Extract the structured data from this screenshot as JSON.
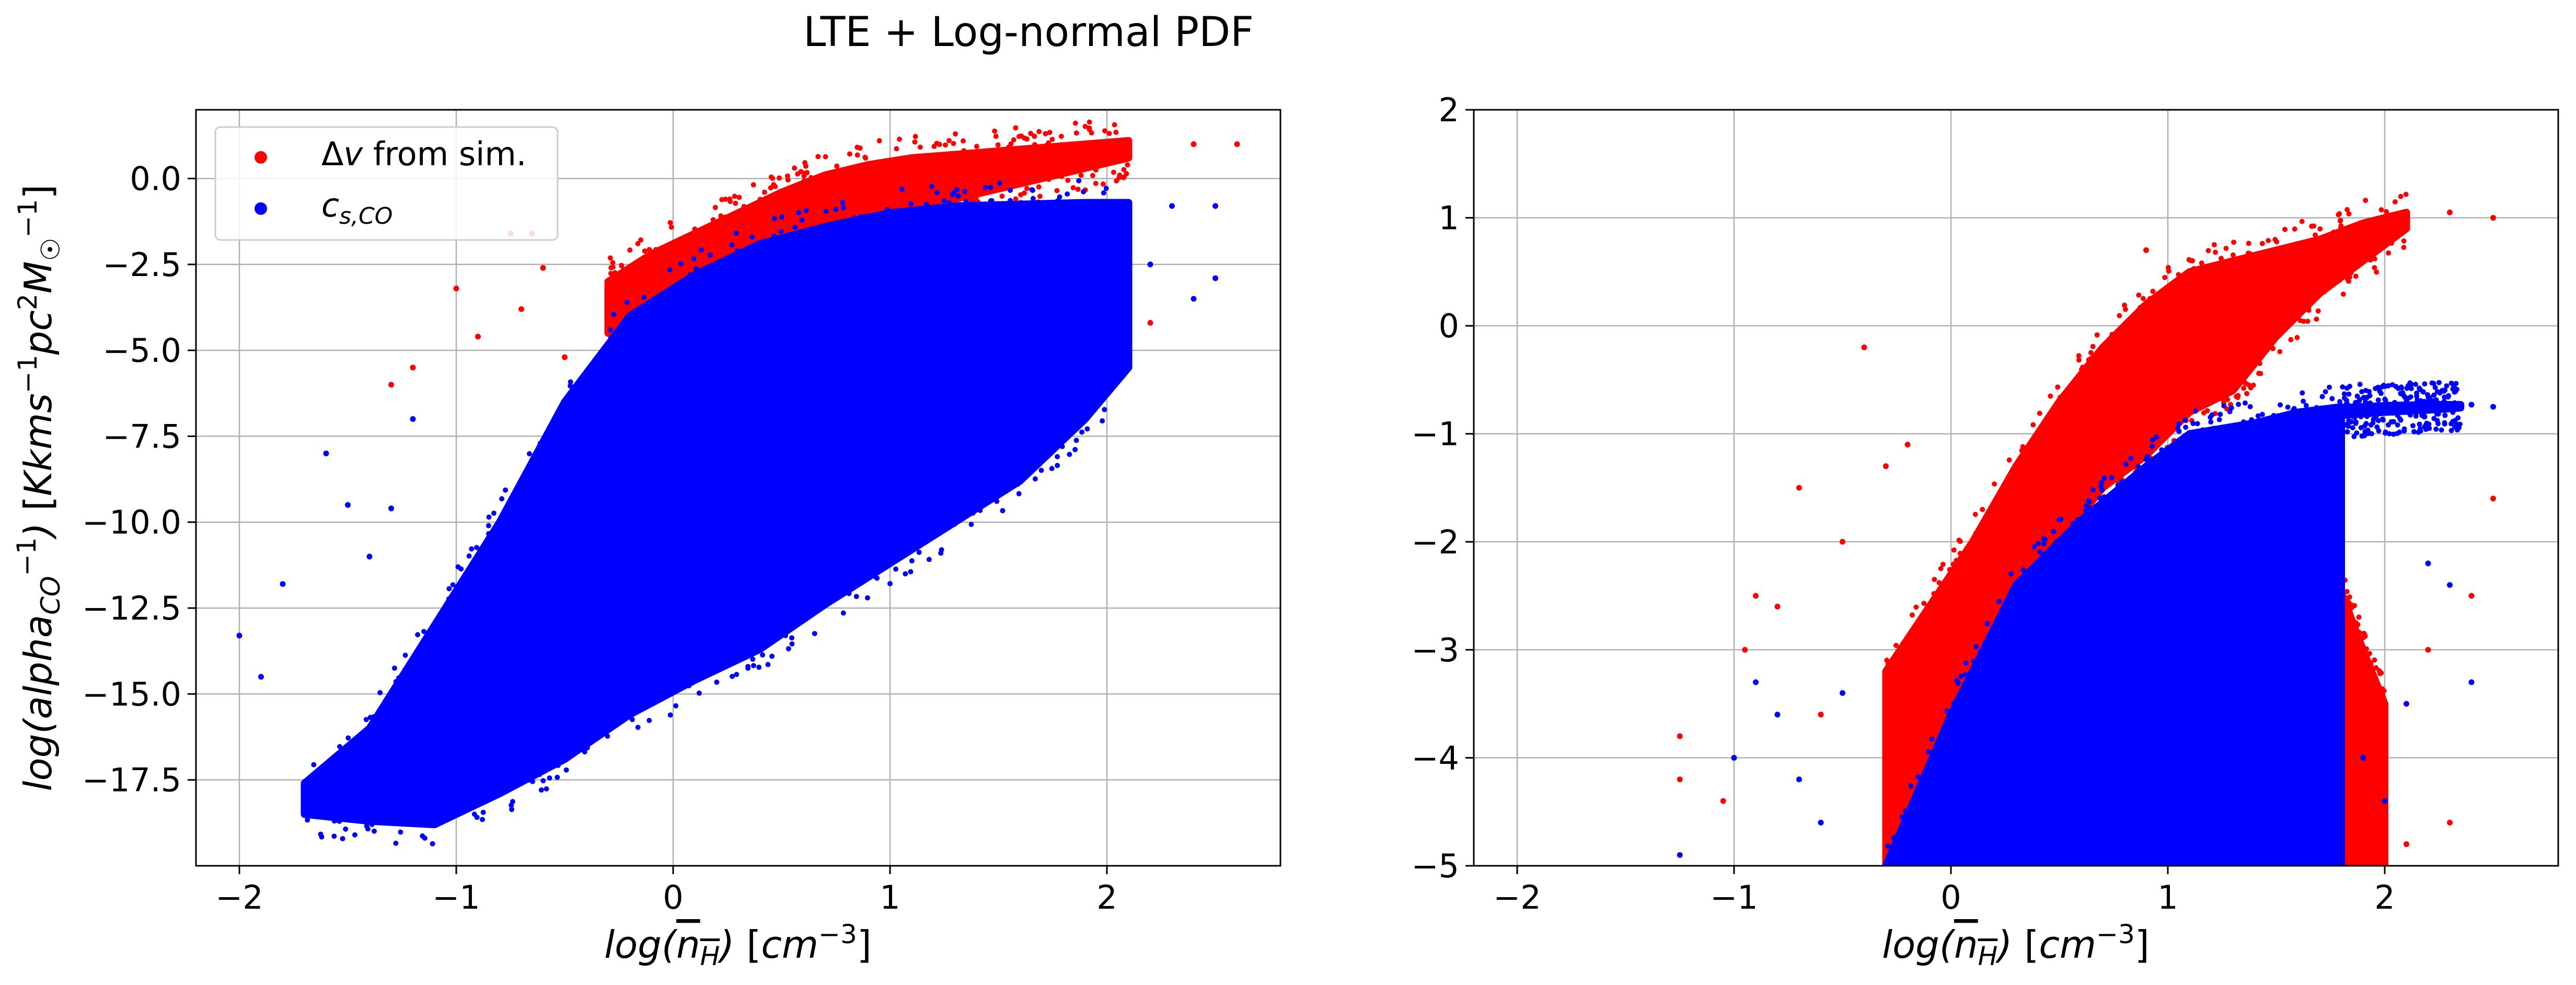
{
  "figure": {
    "title": "LTE + Log-normal PDF"
  },
  "chart_data": [
    {
      "type": "scatter",
      "xlabel": "log(n̄_H) [cm^-3]",
      "ylabel": "log(alpha_CO^-1) [Kkms^-1pc^2M_☉^-1]",
      "xlim": [
        -2.2,
        2.8
      ],
      "ylim": [
        -20.0,
        2.0
      ],
      "xticks": [
        -2,
        -1,
        0,
        1,
        2
      ],
      "yticks": [
        0.0,
        -2.5,
        -5.0,
        -7.5,
        -10.0,
        -12.5,
        -15.0,
        -17.5
      ],
      "xtick_labels": [
        "−2",
        "−1",
        "0",
        "1",
        "2"
      ],
      "ytick_labels": [
        "0.0",
        "−2.5",
        "−5.0",
        "−7.5",
        "−10.0",
        "−12.5",
        "−15.0",
        "−17.5"
      ],
      "grid": true,
      "legend": "upper left",
      "series": [
        {
          "name": "Δv from sim.",
          "color": "#ff0000",
          "regions": [
            {
              "x": [
                -0.3,
                -0.1,
                0.1,
                0.3,
                0.5,
                0.7,
                0.9,
                1.1,
                1.3,
                1.5,
                1.7,
                1.9,
                2.1
              ],
              "lower": [
                -4.5,
                -3.5,
                -2.6,
                -2.0,
                -1.6,
                -1.2,
                -1.0,
                -0.8,
                -0.6,
                -0.3,
                0.0,
                0.3,
                0.6
              ],
              "upper": [
                -3.0,
                -2.2,
                -1.6,
                -1.0,
                -0.4,
                0.1,
                0.4,
                0.6,
                0.7,
                0.8,
                0.9,
                1.0,
                1.1
              ]
            }
          ],
          "points": [
            [
              -0.5,
              -5.2
            ],
            [
              -0.7,
              -3.8
            ],
            [
              -0.9,
              -4.6
            ],
            [
              -1.0,
              -3.2
            ],
            [
              -1.2,
              -5.5
            ],
            [
              -0.6,
              -2.6
            ],
            [
              -0.75,
              -1.6
            ],
            [
              -0.65,
              -1.6
            ],
            [
              2.4,
              1.0
            ],
            [
              2.6,
              1.0
            ],
            [
              1.8,
              -2.4
            ],
            [
              2.0,
              -3.0
            ],
            [
              2.2,
              -4.2
            ],
            [
              1.6,
              -3.6
            ],
            [
              1.5,
              -2.2
            ],
            [
              -1.3,
              -6.0
            ]
          ]
        },
        {
          "name": "c_{s,CO}",
          "color": "#0000ff",
          "regions": [
            {
              "x": [
                -1.7,
                -1.4,
                -1.1,
                -0.8,
                -0.5,
                -0.2,
                0.1,
                0.4,
                0.7,
                1.0,
                1.3,
                1.6,
                1.9,
                2.1
              ],
              "lower": [
                -18.5,
                -18.7,
                -18.8,
                -17.9,
                -16.9,
                -15.6,
                -14.6,
                -13.7,
                -12.4,
                -11.2,
                -10.0,
                -8.8,
                -7.0,
                -5.5
              ],
              "upper": [
                -17.6,
                -16.0,
                -13.0,
                -10.0,
                -6.5,
                -4.0,
                -2.8,
                -1.9,
                -1.4,
                -1.0,
                -0.8,
                -0.75,
                -0.7,
                -0.7
              ]
            }
          ],
          "points": [
            [
              -2.0,
              -13.3
            ],
            [
              -1.8,
              -11.8
            ],
            [
              -1.6,
              -8.0
            ],
            [
              -1.5,
              -9.5
            ],
            [
              -1.4,
              -11.0
            ],
            [
              -1.2,
              -7.0
            ],
            [
              -1.3,
              -9.6
            ],
            [
              2.2,
              -2.5
            ],
            [
              2.4,
              -3.5
            ],
            [
              2.5,
              -2.9
            ],
            [
              2.3,
              -0.8
            ],
            [
              2.5,
              -0.8
            ],
            [
              1.9,
              -4.0
            ],
            [
              2.1,
              -4.5
            ],
            [
              -1.9,
              -14.5
            ]
          ]
        }
      ]
    },
    {
      "type": "scatter",
      "xlabel": "log(n̄_H) [cm^-3]",
      "ylabel": "",
      "xlim": [
        -2.2,
        2.8
      ],
      "ylim": [
        -5.0,
        2.0
      ],
      "xticks": [
        -2,
        -1,
        0,
        1,
        2
      ],
      "yticks": [
        2,
        1,
        0,
        -1,
        -2,
        -3,
        -4,
        -5
      ],
      "xtick_labels": [
        "−2",
        "−1",
        "0",
        "1",
        "2"
      ],
      "ytick_labels": [
        "2",
        "1",
        "0",
        "−1",
        "−2",
        "−3",
        "−4",
        "−5"
      ],
      "grid": true,
      "legend": "none",
      "series": [
        {
          "name": "Δv from sim.",
          "color": "#ff0000",
          "regions": [
            {
              "x": [
                -0.3,
                -0.1,
                0.1,
                0.3,
                0.5,
                0.7,
                0.9,
                1.1,
                1.3,
                1.5,
                1.7,
                1.9,
                2.1
              ],
              "lower": [
                -5.0,
                -4.7,
                -3.8,
                -2.8,
                -2.0,
                -1.5,
                -1.2,
                -0.8,
                -0.6,
                -0.1,
                0.3,
                0.6,
                0.9
              ],
              "upper": [
                -3.2,
                -2.6,
                -2.0,
                -1.3,
                -0.7,
                -0.2,
                0.2,
                0.5,
                0.6,
                0.7,
                0.8,
                0.95,
                1.05
              ]
            },
            {
              "x": [
                1.3,
                1.45,
                1.6,
                1.75,
                1.9,
                2.0
              ],
              "lower": [
                -5.0,
                -5.0,
                -5.0,
                -5.0,
                -5.0,
                -5.0
              ],
              "upper": [
                -2.2,
                -1.4,
                -1.4,
                -2.2,
                -3.0,
                -3.5
              ]
            }
          ],
          "points": [
            [
              -1.25,
              -4.2
            ],
            [
              -1.25,
              -3.8
            ],
            [
              -0.9,
              -2.5
            ],
            [
              -0.95,
              -3.0
            ],
            [
              -0.7,
              -1.5
            ],
            [
              -0.6,
              -3.6
            ],
            [
              -0.5,
              -2.0
            ],
            [
              -0.4,
              -0.2
            ],
            [
              -0.3,
              -1.3
            ],
            [
              0.9,
              0.7
            ],
            [
              2.3,
              1.05
            ],
            [
              2.5,
              1.0
            ],
            [
              2.2,
              -3.0
            ],
            [
              2.4,
              -2.5
            ],
            [
              2.5,
              -1.6
            ],
            [
              -1.05,
              -4.4
            ],
            [
              -0.8,
              -2.6
            ],
            [
              2.3,
              -4.6
            ],
            [
              2.1,
              -4.8
            ],
            [
              -0.2,
              -1.1
            ]
          ]
        },
        {
          "name": "c_{s,CO}",
          "color": "#0000ff",
          "regions": [
            {
              "x": [
                -0.3,
                0.0,
                0.3,
                0.6,
                0.9,
                1.1,
                1.4,
                1.6,
                1.8
              ],
              "lower": [
                -5.0,
                -5.0,
                -5.0,
                -5.0,
                -5.0,
                -5.0,
                -5.0,
                -5.0,
                -5.0
              ],
              "upper": [
                -5.0,
                -3.6,
                -2.4,
                -1.8,
                -1.3,
                -1.0,
                -0.9,
                -0.8,
                -0.75
              ]
            },
            {
              "x": [
                1.8,
                2.0,
                2.2,
                2.35
              ],
              "lower": [
                -0.83,
                -0.8,
                -0.78,
                -0.76
              ],
              "upper": [
                -0.76,
                -0.74,
                -0.73,
                -0.73
              ]
            }
          ],
          "points": [
            [
              -1.25,
              -4.9
            ],
            [
              -1.0,
              -4.0
            ],
            [
              -0.9,
              -3.3
            ],
            [
              -0.8,
              -3.6
            ],
            [
              -0.7,
              -4.2
            ],
            [
              -0.5,
              -3.4
            ],
            [
              -0.6,
              -4.6
            ],
            [
              2.1,
              -3.5
            ],
            [
              2.3,
              -2.4
            ],
            [
              2.4,
              -3.3
            ],
            [
              2.5,
              -0.75
            ],
            [
              2.4,
              -0.73
            ],
            [
              1.9,
              -4.0
            ],
            [
              2.2,
              -2.2
            ],
            [
              2.0,
              -4.4
            ]
          ]
        }
      ]
    }
  ]
}
